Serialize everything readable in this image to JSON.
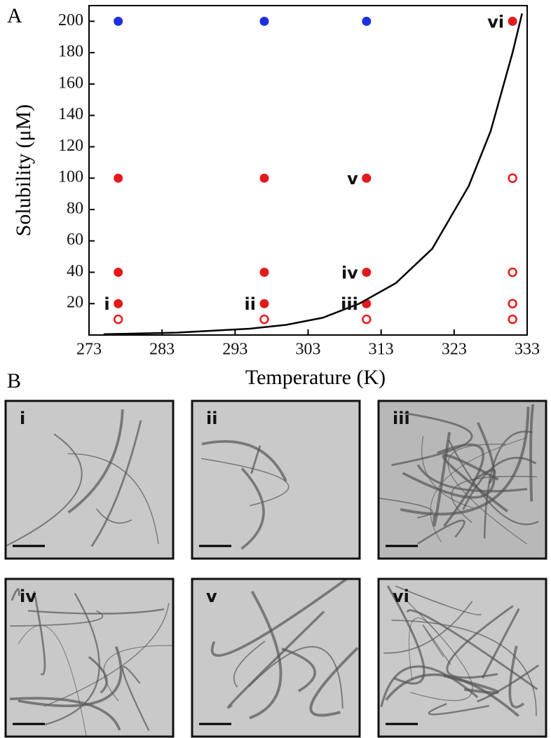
{
  "chart_data": {
    "type": "scatter",
    "panel_label": "A",
    "x_label": "Temperature (K)",
    "y_label": "Solubility (μM)",
    "xlim": [
      273,
      333
    ],
    "ylim": [
      0,
      210
    ],
    "xticks": [
      273,
      283,
      293,
      303,
      313,
      323,
      333
    ],
    "yticks": [
      20,
      40,
      60,
      80,
      100,
      120,
      140,
      160,
      180,
      200
    ],
    "series": [
      {
        "color": "#e31a1c",
        "marker": "filled",
        "x": [
          277,
          277,
          277,
          297,
          297,
          297,
          311,
          311,
          311,
          311,
          331
        ],
        "values": [
          20,
          40,
          100,
          20,
          40,
          100,
          20,
          40,
          100,
          100,
          200
        ]
      },
      {
        "color": "#e31a1c",
        "marker": "open",
        "x": [
          277,
          297,
          311,
          331,
          331,
          331,
          331
        ],
        "values": [
          10,
          10,
          10,
          10,
          20,
          40,
          100
        ]
      },
      {
        "color": "#1f2fe0",
        "marker": "filled",
        "x": [
          277,
          297,
          311
        ],
        "values": [
          200,
          200,
          200
        ]
      },
      {
        "color": "#000000",
        "marker": "line",
        "x": [
          275,
          285,
          295,
          300,
          305,
          310,
          315,
          320,
          325,
          328,
          331,
          332.3
        ],
        "values": [
          0.5,
          1.5,
          4,
          6.5,
          11,
          20,
          33,
          55,
          95,
          130,
          180,
          205
        ]
      }
    ],
    "annotations": [
      {
        "text": "i",
        "x": 277,
        "y": 20
      },
      {
        "text": "ii",
        "x": 297,
        "y": 20
      },
      {
        "text": "iii",
        "x": 311,
        "y": 20
      },
      {
        "text": "iv",
        "x": 311,
        "y": 40
      },
      {
        "text": "v",
        "x": 311,
        "y": 100
      },
      {
        "text": "vi",
        "x": 331,
        "y": 200
      }
    ]
  },
  "panel_b": {
    "label": "B",
    "images": [
      "i",
      "ii",
      "iii",
      "iv",
      "v",
      "vi"
    ]
  }
}
